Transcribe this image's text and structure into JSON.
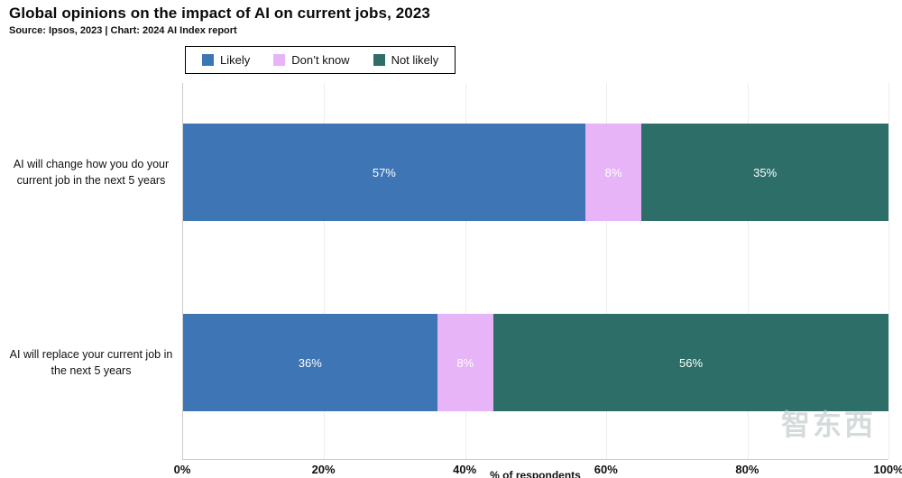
{
  "header": {
    "title": "Global opinions on the impact of AI on current jobs, 2023",
    "subtitle": "Source: Ipsos, 2023 | Chart: 2024 AI Index report"
  },
  "legend": [
    {
      "label": "Likely",
      "color": "#3d75b5"
    },
    {
      "label": "Don’t know",
      "color": "#e6b4f7"
    },
    {
      "label": "Not likely",
      "color": "#2d6e68"
    }
  ],
  "chart_data": {
    "type": "bar",
    "orientation": "horizontal",
    "stacked": true,
    "title": "Global opinions on the impact of AI on current jobs, 2023",
    "categories": [
      "AI will change how you do your current job in the next 5 years",
      "AI will replace your current job in the next 5 years"
    ],
    "series": [
      {
        "name": "Likely",
        "color": "#3d75b5",
        "values": [
          57,
          36
        ]
      },
      {
        "name": "Don’t know",
        "color": "#e6b4f7",
        "values": [
          8,
          8
        ]
      },
      {
        "name": "Not likely",
        "color": "#2d6e68",
        "values": [
          35,
          56
        ]
      }
    ],
    "xlabel": "% of respondents",
    "x_ticks": [
      "0%",
      "20%",
      "40%",
      "60%",
      "80%",
      "100%"
    ],
    "xlim": [
      0,
      100
    ],
    "grid": "vertical-faint",
    "legend_position": "top",
    "value_label_format": "percent"
  },
  "watermark": "智东西"
}
